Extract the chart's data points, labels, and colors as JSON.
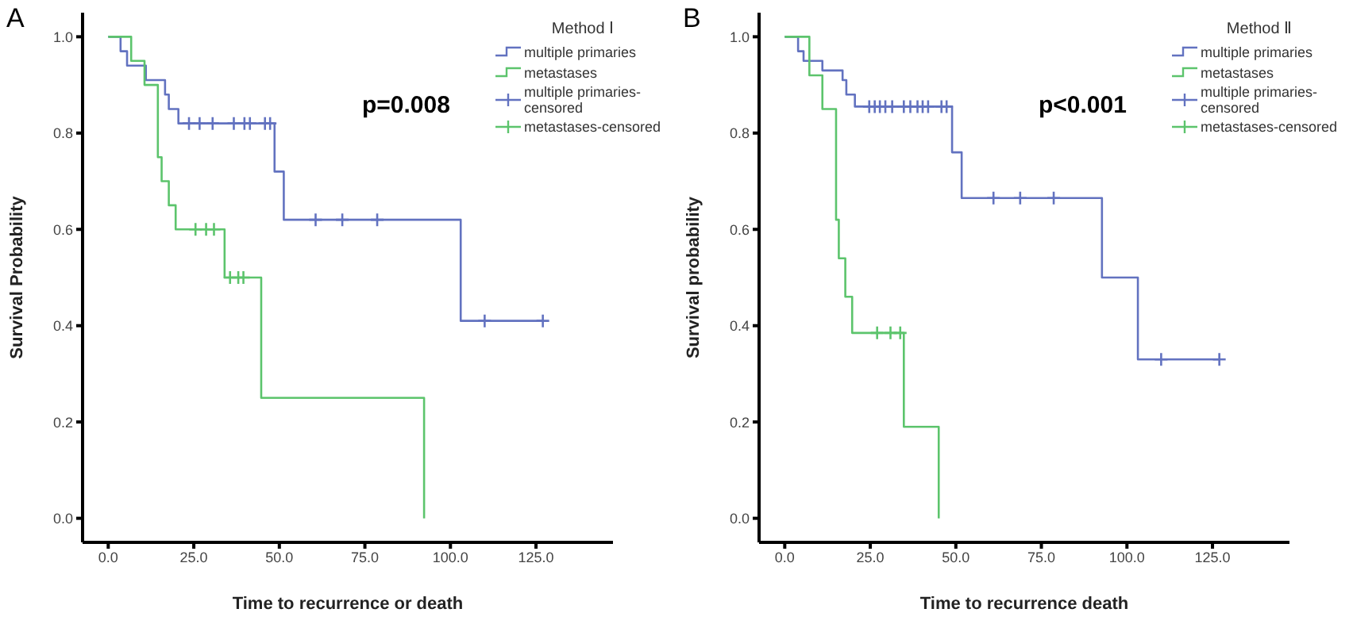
{
  "chart_data": [
    {
      "type": "step",
      "title": "A",
      "xlabel": "Time to recurrence or death",
      "ylabel": "Survival Probability",
      "legend_title": "Method Ⅰ",
      "legend": "top right",
      "grid": false,
      "annotations": [
        "p=0.008"
      ],
      "xlim": [
        -7.5,
        147.5
      ],
      "ylim": [
        -0.05,
        1.05
      ],
      "xticks": [
        {
          "value": 0,
          "label": "0.0"
        },
        {
          "value": 25,
          "label": "25.0"
        },
        {
          "value": 50,
          "label": "50.0"
        },
        {
          "value": 75,
          "label": "75.0"
        },
        {
          "value": 100,
          "label": "100.0"
        },
        {
          "value": 125,
          "label": "125.0"
        }
      ],
      "yticks": [
        {
          "value": 0,
          "label": "0.0"
        },
        {
          "value": 0.2,
          "label": "0.2"
        },
        {
          "value": 0.4,
          "label": "0.4"
        },
        {
          "value": 0.6,
          "label": "0.6"
        },
        {
          "value": 0.8,
          "label": "0.8"
        },
        {
          "value": 1,
          "label": "1.0"
        }
      ],
      "series": [
        {
          "name": "multiple primaries",
          "color": "#6272c0",
          "marker": "none",
          "x": [
            0,
            3.6,
            5.5,
            11,
            16.6,
            17.7,
            20.5,
            48.6,
            51.3,
            103,
            127
          ],
          "values": [
            1,
            0.97,
            0.94,
            0.91,
            0.88,
            0.85,
            0.82,
            0.72,
            0.62,
            0.41,
            0.41
          ]
        },
        {
          "name": "metastases",
          "color": "#5cc46c",
          "marker": "none",
          "x": [
            0,
            6.7,
            10.6,
            14.5,
            15.6,
            17.7,
            19.7,
            34,
            44.7,
            92.3
          ],
          "values": [
            1,
            0.95,
            0.9,
            0.75,
            0.7,
            0.65,
            0.6,
            0.5,
            0.25,
            0
          ]
        },
        {
          "name": "multiple primaries-censored",
          "type": "scatter",
          "color": "#6272c0",
          "marker": "cross",
          "x": [
            23.6,
            26.7,
            30.5,
            36.7,
            39.8,
            41.4,
            45.8,
            47.3,
            60.6,
            68.4,
            78.6,
            110,
            127
          ],
          "values": [
            0.82,
            0.82,
            0.82,
            0.82,
            0.82,
            0.82,
            0.82,
            0.82,
            0.62,
            0.62,
            0.62,
            0.41,
            0.41
          ]
        },
        {
          "name": "metastases-censored",
          "type": "scatter",
          "color": "#5cc46c",
          "marker": "cross",
          "x": [
            25.5,
            28.6,
            30.9,
            35.6,
            38,
            39.5
          ],
          "values": [
            0.6,
            0.6,
            0.6,
            0.5,
            0.5,
            0.5
          ]
        }
      ]
    },
    {
      "type": "step",
      "title": "B",
      "xlabel": "Time to recurrence death",
      "ylabel": "Survival probability",
      "legend_title": "Method Ⅱ",
      "legend": "top right",
      "grid": false,
      "annotations": [
        "p<0.001"
      ],
      "xlim": [
        -7.5,
        147.5
      ],
      "ylim": [
        -0.05,
        1.05
      ],
      "xticks": [
        {
          "value": 0,
          "label": "0.0"
        },
        {
          "value": 25,
          "label": "25.0"
        },
        {
          "value": 50,
          "label": "50.0"
        },
        {
          "value": 75,
          "label": "75.0"
        },
        {
          "value": 100,
          "label": "100.0"
        },
        {
          "value": 125,
          "label": "125.0"
        }
      ],
      "yticks": [
        {
          "value": 0,
          "label": "0.0"
        },
        {
          "value": 0.2,
          "label": "0.2"
        },
        {
          "value": 0.4,
          "label": "0.4"
        },
        {
          "value": 0.6,
          "label": "0.6"
        },
        {
          "value": 0.8,
          "label": "0.8"
        },
        {
          "value": 1,
          "label": "1.0"
        }
      ],
      "series": [
        {
          "name": "multiple primaries",
          "color": "#6272c0",
          "marker": "none",
          "x": [
            0,
            3.9,
            5.5,
            11,
            16.9,
            18,
            20.5,
            48.9,
            51.7,
            92.7,
            103.2,
            127
          ],
          "values": [
            1,
            0.97,
            0.95,
            0.93,
            0.91,
            0.88,
            0.855,
            0.76,
            0.665,
            0.5,
            0.33,
            0.33
          ]
        },
        {
          "name": "metastases",
          "color": "#5cc46c",
          "marker": "none",
          "x": [
            0,
            7.2,
            11,
            15,
            15.8,
            17.7,
            19.7,
            34.8,
            45
          ],
          "values": [
            1,
            0.92,
            0.85,
            0.62,
            0.54,
            0.46,
            0.385,
            0.19,
            0
          ]
        },
        {
          "name": "multiple primaries-censored",
          "type": "scatter",
          "color": "#6272c0",
          "marker": "cross",
          "x": [
            24.7,
            26.3,
            27.8,
            29.4,
            31.4,
            34.8,
            36.7,
            38.8,
            40.3,
            41.9,
            45.8,
            47.3,
            61,
            68.8,
            78.6,
            110,
            127
          ],
          "values": [
            0.855,
            0.855,
            0.855,
            0.855,
            0.855,
            0.855,
            0.855,
            0.855,
            0.855,
            0.855,
            0.855,
            0.855,
            0.665,
            0.665,
            0.665,
            0.33,
            0.33
          ]
        },
        {
          "name": "metastases-censored",
          "type": "scatter",
          "color": "#5cc46c",
          "marker": "cross",
          "x": [
            27,
            30.9,
            33.75
          ],
          "values": [
            0.385,
            0.385,
            0.385
          ]
        }
      ]
    }
  ]
}
